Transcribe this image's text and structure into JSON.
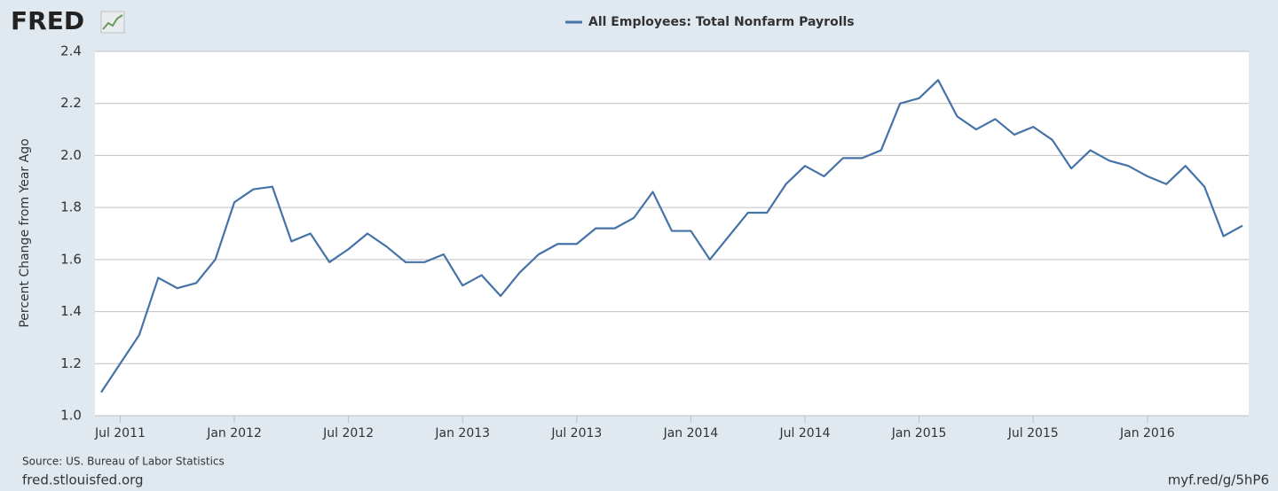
{
  "chart_data": {
    "type": "line",
    "logo": "FRED",
    "ylabel": "Percent Change from Year Ago",
    "source": "Source: US. Bureau of Labor Statistics",
    "site": "fred.stlouisfed.org",
    "short_link": "myf.red/g/5hP6",
    "x": [
      "2011-06",
      "2011-07",
      "2011-08",
      "2011-09",
      "2011-10",
      "2011-11",
      "2011-12",
      "2012-01",
      "2012-02",
      "2012-03",
      "2012-04",
      "2012-05",
      "2012-06",
      "2012-07",
      "2012-08",
      "2012-09",
      "2012-10",
      "2012-11",
      "2012-12",
      "2013-01",
      "2013-02",
      "2013-03",
      "2013-04",
      "2013-05",
      "2013-06",
      "2013-07",
      "2013-08",
      "2013-09",
      "2013-10",
      "2013-11",
      "2013-12",
      "2014-01",
      "2014-02",
      "2014-03",
      "2014-04",
      "2014-05",
      "2014-06",
      "2014-07",
      "2014-08",
      "2014-09",
      "2014-10",
      "2014-11",
      "2014-12",
      "2015-01",
      "2015-02",
      "2015-03",
      "2015-04",
      "2015-05",
      "2015-06",
      "2015-07",
      "2015-08",
      "2015-09",
      "2015-10",
      "2015-11",
      "2015-12",
      "2016-01",
      "2016-02",
      "2016-03",
      "2016-04",
      "2016-05",
      "2016-06"
    ],
    "series": [
      {
        "name": "All Employees: Total Nonfarm Payrolls",
        "color": "#4572a7",
        "values": [
          1.09,
          1.2,
          1.31,
          1.53,
          1.49,
          1.51,
          1.6,
          1.82,
          1.87,
          1.88,
          1.67,
          1.7,
          1.59,
          1.64,
          1.7,
          1.65,
          1.59,
          1.59,
          1.62,
          1.5,
          1.54,
          1.46,
          1.55,
          1.62,
          1.66,
          1.66,
          1.72,
          1.72,
          1.76,
          1.86,
          1.71,
          1.71,
          1.6,
          1.69,
          1.78,
          1.78,
          1.89,
          1.96,
          1.92,
          1.99,
          1.99,
          2.02,
          2.2,
          2.22,
          2.29,
          2.15,
          2.1,
          2.14,
          2.08,
          2.11,
          2.06,
          1.95,
          2.02,
          1.98,
          1.96,
          1.92,
          1.89,
          1.96,
          1.88,
          1.69,
          1.73
        ]
      }
    ],
    "xlim": [
      "2011-06",
      "2016-06"
    ],
    "xticks": [
      {
        "value": "2011-07",
        "label": "Jul 2011"
      },
      {
        "value": "2012-01",
        "label": "Jan 2012"
      },
      {
        "value": "2012-07",
        "label": "Jul 2012"
      },
      {
        "value": "2013-01",
        "label": "Jan 2013"
      },
      {
        "value": "2013-07",
        "label": "Jul 2013"
      },
      {
        "value": "2014-01",
        "label": "Jan 2014"
      },
      {
        "value": "2014-07",
        "label": "Jul 2014"
      },
      {
        "value": "2015-01",
        "label": "Jan 2015"
      },
      {
        "value": "2015-07",
        "label": "Jul 2015"
      },
      {
        "value": "2016-01",
        "label": "Jan 2016"
      }
    ],
    "ylim": [
      1.0,
      2.4
    ],
    "yticks": [
      {
        "value": 1,
        "label": "1.0"
      },
      1.2,
      1.4,
      1.6,
      1.8,
      {
        "value": 2,
        "label": "2.0"
      },
      2.2,
      2.4
    ],
    "grid": true
  }
}
